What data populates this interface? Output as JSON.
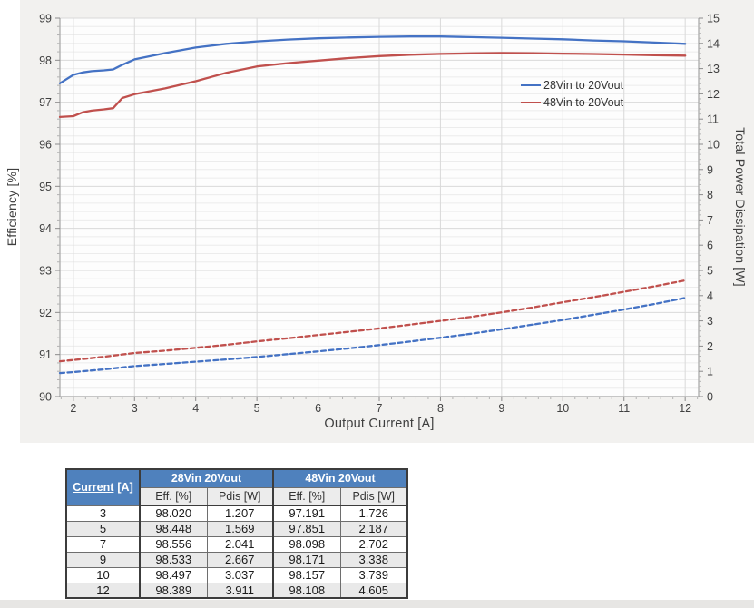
{
  "chart_data": {
    "type": "line",
    "title": "",
    "xlabel": "Output Current [A]",
    "ylabel_left": "Efficiency [%]",
    "ylabel_right": "Total Power Dissipation [W]",
    "xlim": [
      1.78,
      12.22
    ],
    "ylim_left": [
      90,
      99
    ],
    "ylim_right": [
      0,
      15
    ],
    "x_ticks": [
      2,
      3,
      4,
      5,
      6,
      7,
      8,
      9,
      10,
      11,
      12
    ],
    "y_ticks_left": [
      90,
      91,
      92,
      93,
      94,
      95,
      96,
      97,
      98,
      99
    ],
    "y_ticks_right": [
      0,
      1,
      2,
      3,
      4,
      5,
      6,
      7,
      8,
      9,
      10,
      11,
      12,
      13,
      14,
      15
    ],
    "grid": "major+minor horizontal, major vertical",
    "legend_position": "inside upper-right",
    "legend": [
      "28Vin to 20Vout",
      "48Vin to 20Vout"
    ],
    "series": [
      {
        "name": "28Vin to 20Vout - Efficiency",
        "axis": "left",
        "style": "solid",
        "color": "#4472C4",
        "points": [
          [
            1.78,
            97.45
          ],
          [
            2,
            97.65
          ],
          [
            2.15,
            97.71
          ],
          [
            2.3,
            97.74
          ],
          [
            2.5,
            97.76
          ],
          [
            2.65,
            97.78
          ],
          [
            2.8,
            97.89
          ],
          [
            3,
            98.02
          ],
          [
            3.5,
            98.17
          ],
          [
            4,
            98.3
          ],
          [
            4.5,
            98.39
          ],
          [
            5,
            98.448
          ],
          [
            5.5,
            98.49
          ],
          [
            6,
            98.52
          ],
          [
            6.5,
            98.54
          ],
          [
            7,
            98.556
          ],
          [
            7.5,
            98.563
          ],
          [
            8,
            98.565
          ],
          [
            8.5,
            98.55
          ],
          [
            9,
            98.533
          ],
          [
            9.5,
            98.515
          ],
          [
            10,
            98.497
          ],
          [
            10.5,
            98.47
          ],
          [
            11,
            98.45
          ],
          [
            11.5,
            98.42
          ],
          [
            12,
            98.389
          ]
        ]
      },
      {
        "name": "48Vin to 20Vout - Efficiency",
        "axis": "left",
        "style": "solid",
        "color": "#C0504D",
        "points": [
          [
            1.78,
            96.65
          ],
          [
            2,
            96.67
          ],
          [
            2.15,
            96.76
          ],
          [
            2.3,
            96.8
          ],
          [
            2.5,
            96.83
          ],
          [
            2.65,
            96.86
          ],
          [
            2.8,
            97.1
          ],
          [
            3,
            97.191
          ],
          [
            3.5,
            97.33
          ],
          [
            4,
            97.5
          ],
          [
            4.5,
            97.7
          ],
          [
            5,
            97.851
          ],
          [
            5.5,
            97.93
          ],
          [
            6,
            97.99
          ],
          [
            6.5,
            98.05
          ],
          [
            7,
            98.098
          ],
          [
            7.5,
            98.13
          ],
          [
            8,
            98.15
          ],
          [
            8.5,
            98.163
          ],
          [
            9,
            98.171
          ],
          [
            9.5,
            98.166
          ],
          [
            10,
            98.157
          ],
          [
            10.5,
            98.147
          ],
          [
            11,
            98.135
          ],
          [
            11.5,
            98.12
          ],
          [
            12,
            98.108
          ]
        ]
      },
      {
        "name": "28Vin to 20Vout - Power Dissipation",
        "axis": "right",
        "style": "dashed",
        "color": "#4472C4",
        "points": [
          [
            1.78,
            0.93
          ],
          [
            2,
            0.97
          ],
          [
            2.5,
            1.08
          ],
          [
            3,
            1.207
          ],
          [
            3.5,
            1.29
          ],
          [
            4,
            1.38
          ],
          [
            4.5,
            1.47
          ],
          [
            5,
            1.569
          ],
          [
            5.5,
            1.68
          ],
          [
            6,
            1.79
          ],
          [
            6.5,
            1.91
          ],
          [
            7,
            2.041
          ],
          [
            7.5,
            2.18
          ],
          [
            8,
            2.33
          ],
          [
            8.5,
            2.49
          ],
          [
            9,
            2.667
          ],
          [
            9.5,
            2.85
          ],
          [
            10,
            3.037
          ],
          [
            10.5,
            3.24
          ],
          [
            11,
            3.45
          ],
          [
            11.5,
            3.67
          ],
          [
            12,
            3.911
          ]
        ]
      },
      {
        "name": "48Vin to 20Vout - Power Dissipation",
        "axis": "right",
        "style": "dashed",
        "color": "#C0504D",
        "points": [
          [
            1.78,
            1.4
          ],
          [
            2,
            1.45
          ],
          [
            2.5,
            1.58
          ],
          [
            3,
            1.726
          ],
          [
            3.5,
            1.82
          ],
          [
            4,
            1.93
          ],
          [
            4.5,
            2.05
          ],
          [
            5,
            2.187
          ],
          [
            5.5,
            2.31
          ],
          [
            6,
            2.44
          ],
          [
            6.5,
            2.57
          ],
          [
            7,
            2.702
          ],
          [
            7.5,
            2.85
          ],
          [
            8,
            3.0
          ],
          [
            8.5,
            3.16
          ],
          [
            9,
            3.338
          ],
          [
            9.5,
            3.53
          ],
          [
            10,
            3.739
          ],
          [
            10.5,
            3.94
          ],
          [
            11,
            4.15
          ],
          [
            11.5,
            4.37
          ],
          [
            12,
            4.605
          ]
        ]
      }
    ]
  },
  "table": {
    "col1_header": "Current",
    "col1_unit": "[A]",
    "group_headers": [
      "28Vin 20Vout",
      "48Vin 20Vout"
    ],
    "sub_headers": [
      "Eff. [%]",
      "Pdis [W]",
      "Eff. [%]",
      "Pdis [W]"
    ],
    "rows": [
      {
        "current": "3",
        "values": [
          "98.020",
          "1.207",
          "97.191",
          "1.726"
        ]
      },
      {
        "current": "5",
        "values": [
          "98.448",
          "1.569",
          "97.851",
          "2.187"
        ]
      },
      {
        "current": "7",
        "values": [
          "98.556",
          "2.041",
          "98.098",
          "2.702"
        ]
      },
      {
        "current": "9",
        "values": [
          "98.533",
          "2.667",
          "98.171",
          "3.338"
        ]
      },
      {
        "current": "10",
        "values": [
          "98.497",
          "3.037",
          "98.157",
          "3.739"
        ]
      },
      {
        "current": "12",
        "values": [
          "98.389",
          "3.911",
          "98.108",
          "4.605"
        ]
      }
    ]
  },
  "colors": {
    "series_blue": "#4472C4",
    "series_red": "#C0504D",
    "table_header_blue": "#4F81BD",
    "panel_background": "#F2F1EF",
    "plot_background": "#FDFDFD",
    "grid_major": "#D9D9D9",
    "grid_minor": "#ECECEC",
    "axis_line": "#A6A6A6",
    "tick_text": "#404040"
  }
}
